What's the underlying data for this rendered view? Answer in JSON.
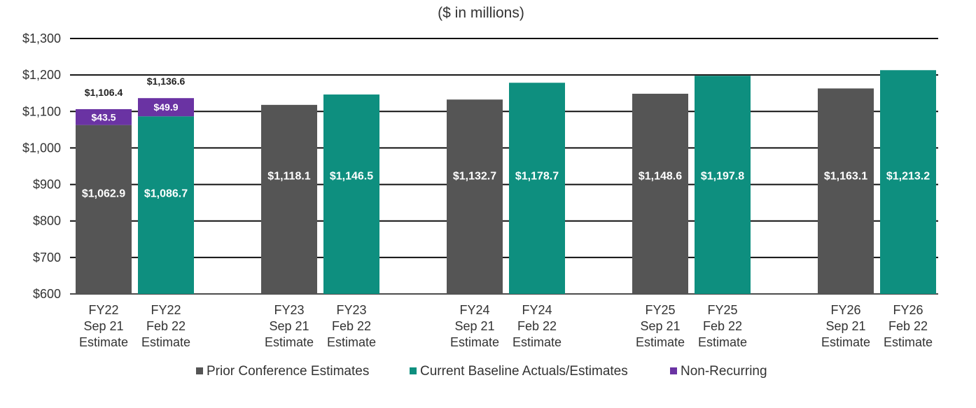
{
  "chart_data": {
    "type": "bar",
    "subtitle": "($ in millions)",
    "ylim": [
      600,
      1300
    ],
    "yticks": [
      "$600",
      "$700",
      "$800",
      "$900",
      "$1,000",
      "$1,100",
      "$1,200",
      "$1,300"
    ],
    "ytick_values": [
      600,
      700,
      800,
      900,
      1000,
      1100,
      1200,
      1300
    ],
    "groups": [
      {
        "year": "FY22",
        "bars": [
          {
            "lines": [
              "FY22",
              "Sep 21",
              "Estimate"
            ],
            "series": "Prior Conference Estimates",
            "base": 1062.9,
            "base_label": "$1,062.9",
            "nonrecurring": 43.5,
            "nonrecurring_label": "$43.5",
            "total_label": "$1,106.4"
          },
          {
            "lines": [
              "FY22",
              "Feb 22",
              "Estimate"
            ],
            "series": "Current Baseline Actuals/Estimates",
            "base": 1086.7,
            "base_label": "$1,086.7",
            "nonrecurring": 49.9,
            "nonrecurring_label": "$49.9",
            "total_label": "$1,136.6"
          }
        ]
      },
      {
        "year": "FY23",
        "bars": [
          {
            "lines": [
              "FY23",
              "Sep 21",
              "Estimate"
            ],
            "series": "Prior Conference Estimates",
            "base": 1118.1,
            "base_label": "$1,118.1"
          },
          {
            "lines": [
              "FY23",
              "Feb 22",
              "Estimate"
            ],
            "series": "Current Baseline Actuals/Estimates",
            "base": 1146.5,
            "base_label": "$1,146.5"
          }
        ]
      },
      {
        "year": "FY24",
        "bars": [
          {
            "lines": [
              "FY24",
              "Sep 21",
              "Estimate"
            ],
            "series": "Prior Conference Estimates",
            "base": 1132.7,
            "base_label": "$1,132.7"
          },
          {
            "lines": [
              "FY24",
              "Feb 22",
              "Estimate"
            ],
            "series": "Current Baseline Actuals/Estimates",
            "base": 1178.7,
            "base_label": "$1,178.7"
          }
        ]
      },
      {
        "year": "FY25",
        "bars": [
          {
            "lines": [
              "FY25",
              "Sep 21",
              "Estimate"
            ],
            "series": "Prior Conference Estimates",
            "base": 1148.6,
            "base_label": "$1,148.6"
          },
          {
            "lines": [
              "FY25",
              "Feb 22",
              "Estimate"
            ],
            "series": "Current Baseline Actuals/Estimates",
            "base": 1197.8,
            "base_label": "$1,197.8"
          }
        ]
      },
      {
        "year": "FY26",
        "bars": [
          {
            "lines": [
              "FY26",
              "Sep 21",
              "Estimate"
            ],
            "series": "Prior Conference Estimates",
            "base": 1163.1,
            "base_label": "$1,163.1"
          },
          {
            "lines": [
              "FY26",
              "Feb 22",
              "Estimate"
            ],
            "series": "Current Baseline Actuals/Estimates",
            "base": 1213.2,
            "base_label": "$1,213.2"
          }
        ]
      }
    ],
    "legend": [
      {
        "name": "Prior Conference Estimates",
        "color": "#555555"
      },
      {
        "name": "Current Baseline Actuals/Estimates",
        "color": "#0e8f7f"
      },
      {
        "name": "Non-Recurring",
        "color": "#6a33a3"
      }
    ],
    "legend_position": "bottom"
  },
  "colors": {
    "prior": "#555555",
    "current": "#0e8f7f",
    "nonrecurring": "#6a33a3",
    "gridline": "#111111"
  }
}
